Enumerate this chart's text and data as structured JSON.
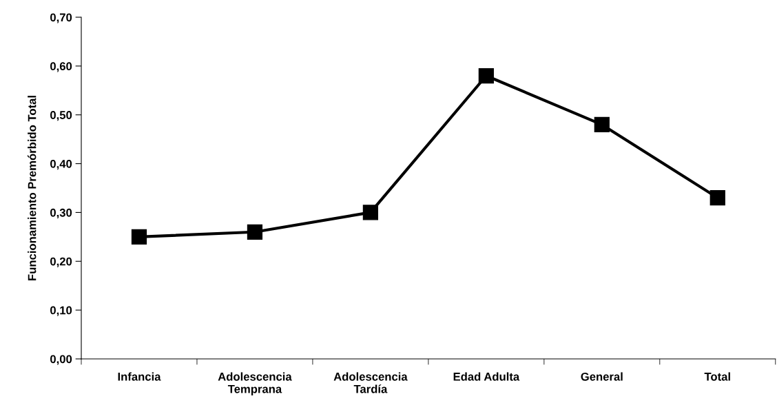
{
  "chart_data": {
    "type": "line",
    "ylabel": "Funcionamiento Premórbido Total",
    "categories": [
      "Infancia",
      "Adolescencia\nTemprana",
      "Adolescencia\nTardía",
      "Edad Adulta",
      "General",
      "Total"
    ],
    "series": [
      {
        "color": "#000000",
        "values": [
          0.25,
          0.26,
          0.3,
          0.58,
          0.48,
          0.33
        ]
      }
    ],
    "ylim": [
      0,
      0.7
    ],
    "yticks": [
      {
        "value": 0,
        "label": "0,00"
      },
      {
        "value": 0.1,
        "label": "0,10"
      },
      {
        "value": 0.2,
        "label": "0,20"
      },
      {
        "value": 0.3,
        "label": "0,30"
      },
      {
        "value": 0.4,
        "label": "0,40"
      },
      {
        "value": 0.5,
        "label": "0,50"
      },
      {
        "value": 0.6,
        "label": "0,60"
      },
      {
        "value": 0.7,
        "label": "0,70"
      }
    ],
    "grid": false,
    "legend": false,
    "marker": "square",
    "line_style": "solid"
  }
}
